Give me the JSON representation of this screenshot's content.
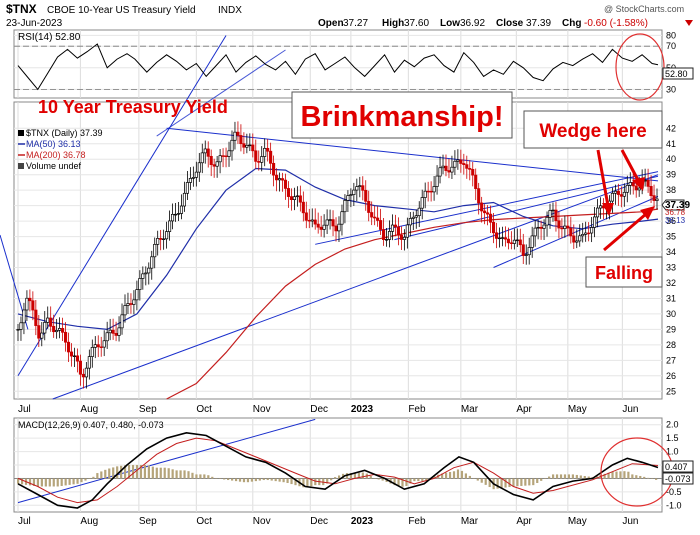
{
  "header": {
    "symbol": "$TNX",
    "name": "CBOE 10-Year US Treasury Yield",
    "exchange": "INDX",
    "date": "23-Jun-2023",
    "watermark": "@ StockCharts.com",
    "open_label": "Open",
    "open": "37.27",
    "high_label": "High",
    "high": "37.60",
    "low_label": "Low",
    "low": "36.92",
    "close_label": "Close",
    "close": "37.39",
    "chg_label": "Chg",
    "chg": "-0.60 (-1.58%)"
  },
  "annotations": {
    "title": "10 Year Treasury Yield",
    "box1": "Brinkmanship!",
    "box2": "Wedge here",
    "falling": "Falling"
  },
  "colors": {
    "price_up": "#000000",
    "price_down": "#cc0000",
    "ma50": "#1f2ea8",
    "ma200": "#c41e1e",
    "trendline": "#1a2fcc",
    "annotation_red": "#e00000",
    "circle": "#e03030",
    "last_price_box": "#222222"
  },
  "chart_data": [
    {
      "type": "line",
      "title": "RSI(14) 52.80",
      "name": "RSI(14)",
      "value": "52.80",
      "ylim": [
        22,
        85
      ],
      "y_ticks": [
        "80",
        "70",
        "50",
        "30"
      ],
      "guides": [
        70,
        30
      ],
      "series": [
        {
          "name": "RSI(14)",
          "points": [
            [
              0,
              52
            ],
            [
              10,
              41
            ],
            [
              20,
              30
            ],
            [
              30,
              45
            ],
            [
              40,
              60
            ],
            [
              50,
              67
            ],
            [
              60,
              59
            ],
            [
              70,
              65
            ],
            [
              80,
              72
            ],
            [
              90,
              50
            ],
            [
              100,
              58
            ],
            [
              110,
              63
            ],
            [
              118,
              58
            ],
            [
              130,
              46
            ],
            [
              140,
              55
            ],
            [
              150,
              62
            ],
            [
              160,
              56
            ],
            [
              170,
              48
            ],
            [
              180,
              54
            ],
            [
              190,
              42
            ],
            [
              200,
              52
            ],
            [
              210,
              62
            ],
            [
              220,
              46
            ],
            [
              230,
              55
            ],
            [
              240,
              61
            ],
            [
              250,
              53
            ],
            [
              260,
              48
            ],
            [
              270,
              56
            ],
            [
              280,
              44
            ],
            [
              290,
              58
            ],
            [
              300,
              63
            ],
            [
              310,
              48
            ],
            [
              320,
              54
            ],
            [
              330,
              60
            ],
            [
              340,
              50
            ],
            [
              350,
              42
            ],
            [
              360,
              52
            ],
            [
              370,
              62
            ],
            [
              380,
              46
            ],
            [
              390,
              57
            ],
            [
              400,
              51
            ],
            [
              410,
              59
            ],
            [
              420,
              62
            ],
            [
              430,
              52
            ],
            [
              440,
              46
            ],
            [
              450,
              64
            ],
            [
              460,
              55
            ],
            [
              470,
              42
            ],
            [
              480,
              48
            ],
            [
              490,
              44
            ],
            [
              500,
              56
            ],
            [
              510,
              50
            ],
            [
              520,
              41
            ],
            [
              530,
              38
            ],
            [
              540,
              49
            ],
            [
              550,
              55
            ],
            [
              560,
              52
            ],
            [
              570,
              58
            ],
            [
              580,
              63
            ],
            [
              590,
              55
            ],
            [
              600,
              67
            ],
            [
              610,
              59
            ],
            [
              620,
              56
            ],
            [
              630,
              62
            ],
            [
              640,
              54
            ],
            [
              646,
              52.8
            ]
          ]
        }
      ]
    },
    {
      "type": "line",
      "title": "$TNX (Daily) 37.39",
      "ylim": [
        24.5,
        43.7
      ],
      "y_ticks": [
        "42",
        "41",
        "40",
        "39",
        "38",
        "37",
        "36",
        "35",
        "34",
        "33",
        "32",
        "31",
        "30",
        "29",
        "28",
        "27",
        "26",
        "25"
      ],
      "x_ticks": [
        "Jul",
        "Aug",
        "Sep",
        "Oct",
        "Nov",
        "Dec",
        "2023",
        "Feb",
        "Mar",
        "Apr",
        "May",
        "Jun"
      ],
      "legend": [
        {
          "label": "$TNX (Daily) 37.39"
        },
        {
          "label": "MA(50) 36.13"
        },
        {
          "label": "MA(200) 36.78"
        },
        {
          "label": "Volume undef"
        }
      ],
      "last_labels": {
        "price": "37.39",
        "ma200": "36.78",
        "ma50": "36.13"
      },
      "series": [
        {
          "name": "$TNX",
          "points": [
            [
              0,
              29
            ],
            [
              8,
              31
            ],
            [
              16,
              30
            ],
            [
              22,
              28.5
            ],
            [
              30,
              29.5
            ],
            [
              40,
              29
            ],
            [
              50,
              28
            ],
            [
              58,
              27
            ],
            [
              64,
              25.8
            ],
            [
              70,
              27
            ],
            [
              80,
              28
            ],
            [
              90,
              28.5
            ],
            [
              100,
              29
            ],
            [
              110,
              30.5
            ],
            [
              120,
              31.5
            ],
            [
              130,
              33
            ],
            [
              140,
              34.5
            ],
            [
              150,
              35.5
            ],
            [
              160,
              36.5
            ],
            [
              170,
              38
            ],
            [
              180,
              39.5
            ],
            [
              190,
              40.5
            ],
            [
              200,
              39.5
            ],
            [
              210,
              40.5
            ],
            [
              220,
              41.5
            ],
            [
              230,
              41
            ],
            [
              240,
              40
            ],
            [
              250,
              40.5
            ],
            [
              260,
              39
            ],
            [
              270,
              38
            ],
            [
              280,
              37.5
            ],
            [
              290,
              36.5
            ],
            [
              300,
              35.5
            ],
            [
              310,
              36
            ],
            [
              320,
              35.5
            ],
            [
              330,
              37
            ],
            [
              340,
              38.5
            ],
            [
              350,
              37.5
            ],
            [
              360,
              36
            ],
            [
              370,
              35
            ],
            [
              380,
              35.5
            ],
            [
              390,
              35
            ],
            [
              400,
              36.5
            ],
            [
              410,
              37.5
            ],
            [
              420,
              38.5
            ],
            [
              430,
              39.5
            ],
            [
              440,
              39.5
            ],
            [
              450,
              40
            ],
            [
              460,
              38.5
            ],
            [
              470,
              36.5
            ],
            [
              480,
              35.5
            ],
            [
              490,
              34.5
            ],
            [
              500,
              35
            ],
            [
              510,
              33.8
            ],
            [
              520,
              35
            ],
            [
              530,
              36
            ],
            [
              540,
              36.5
            ],
            [
              550,
              35.5
            ],
            [
              560,
              35
            ],
            [
              570,
              34.8
            ],
            [
              580,
              36
            ],
            [
              590,
              37
            ],
            [
              600,
              37.5
            ],
            [
              610,
              38
            ],
            [
              620,
              38.2
            ],
            [
              630,
              38.5
            ],
            [
              640,
              37.8
            ],
            [
              646,
              37.39
            ]
          ]
        },
        {
          "name": "MA(50)",
          "points": [
            [
              0,
              30
            ],
            [
              30,
              29.5
            ],
            [
              60,
              29.2
            ],
            [
              90,
              29
            ],
            [
              120,
              30
            ],
            [
              150,
              32.5
            ],
            [
              180,
              35.5
            ],
            [
              210,
              38
            ],
            [
              240,
              39.4
            ],
            [
              270,
              39.3
            ],
            [
              300,
              38.2
            ],
            [
              330,
              37.4
            ],
            [
              360,
              37
            ],
            [
              390,
              36.8
            ],
            [
              420,
              36.6
            ],
            [
              450,
              37
            ],
            [
              480,
              37.2
            ],
            [
              510,
              36.3
            ],
            [
              540,
              35.7
            ],
            [
              570,
              35.5
            ],
            [
              600,
              35.8
            ],
            [
              630,
              36
            ],
            [
              646,
              36.13
            ]
          ]
        },
        {
          "name": "MA(200)",
          "points": [
            [
              150,
              24.5
            ],
            [
              180,
              25.5
            ],
            [
              210,
              27.5
            ],
            [
              240,
              29.8
            ],
            [
              270,
              31.8
            ],
            [
              300,
              33.2
            ],
            [
              330,
              34.2
            ],
            [
              360,
              34.8
            ],
            [
              390,
              35.2
            ],
            [
              420,
              35.6
            ],
            [
              450,
              35.9
            ],
            [
              480,
              36.1
            ],
            [
              510,
              36.2
            ],
            [
              540,
              36.3
            ],
            [
              570,
              36.4
            ],
            [
              600,
              36.5
            ],
            [
              630,
              36.6
            ],
            [
              646,
              36.78
            ]
          ]
        }
      ]
    },
    {
      "type": "line",
      "title": "MACD(12,26,9) 0.407, 0.480, -0.073",
      "name": "MACD(12,26,9)",
      "values": [
        "0.407",
        "0.480",
        "-0.073"
      ],
      "ylim": [
        -1.25,
        2.25
      ],
      "y_ticks": [
        "2.0",
        "1.5",
        "1.0",
        "0.5",
        "0.0",
        "-0.5",
        "-1.0"
      ],
      "last_labels": [
        "0.407",
        "-0.073"
      ],
      "series": [
        {
          "name": "MACD",
          "points": [
            [
              0,
              -0.2
            ],
            [
              20,
              -0.6
            ],
            [
              40,
              -1.0
            ],
            [
              60,
              -1.1
            ],
            [
              75,
              -0.8
            ],
            [
              90,
              -0.2
            ],
            [
              110,
              0.5
            ],
            [
              130,
              1.1
            ],
            [
              150,
              1.5
            ],
            [
              170,
              1.7
            ],
            [
              190,
              1.6
            ],
            [
              210,
              1.2
            ],
            [
              230,
              0.8
            ],
            [
              250,
              0.6
            ],
            [
              270,
              0.2
            ],
            [
              290,
              -0.3
            ],
            [
              310,
              -0.4
            ],
            [
              330,
              0.1
            ],
            [
              350,
              0.3
            ],
            [
              370,
              0.0
            ],
            [
              390,
              -0.4
            ],
            [
              410,
              -0.2
            ],
            [
              430,
              0.4
            ],
            [
              445,
              0.8
            ],
            [
              460,
              0.6
            ],
            [
              480,
              -0.2
            ],
            [
              500,
              -0.6
            ],
            [
              520,
              -0.8
            ],
            [
              540,
              -0.3
            ],
            [
              560,
              -0.1
            ],
            [
              580,
              0.0
            ],
            [
              600,
              0.5
            ],
            [
              615,
              0.75
            ],
            [
              630,
              0.6
            ],
            [
              646,
              0.407
            ]
          ]
        },
        {
          "name": "Signal",
          "points": [
            [
              0,
              0.0
            ],
            [
              20,
              -0.3
            ],
            [
              40,
              -0.7
            ],
            [
              60,
              -0.9
            ],
            [
              80,
              -0.8
            ],
            [
              100,
              -0.3
            ],
            [
              120,
              0.3
            ],
            [
              140,
              0.9
            ],
            [
              160,
              1.3
            ],
            [
              180,
              1.5
            ],
            [
              200,
              1.4
            ],
            [
              220,
              1.1
            ],
            [
              240,
              0.8
            ],
            [
              260,
              0.5
            ],
            [
              280,
              0.2
            ],
            [
              300,
              -0.1
            ],
            [
              320,
              -0.2
            ],
            [
              340,
              0.0
            ],
            [
              360,
              0.15
            ],
            [
              380,
              0.05
            ],
            [
              400,
              -0.2
            ],
            [
              420,
              0.0
            ],
            [
              440,
              0.4
            ],
            [
              460,
              0.6
            ],
            [
              480,
              0.2
            ],
            [
              500,
              -0.3
            ],
            [
              520,
              -0.55
            ],
            [
              540,
              -0.45
            ],
            [
              560,
              -0.25
            ],
            [
              580,
              -0.05
            ],
            [
              600,
              0.25
            ],
            [
              620,
              0.55
            ],
            [
              646,
              0.48
            ]
          ]
        }
      ]
    }
  ]
}
